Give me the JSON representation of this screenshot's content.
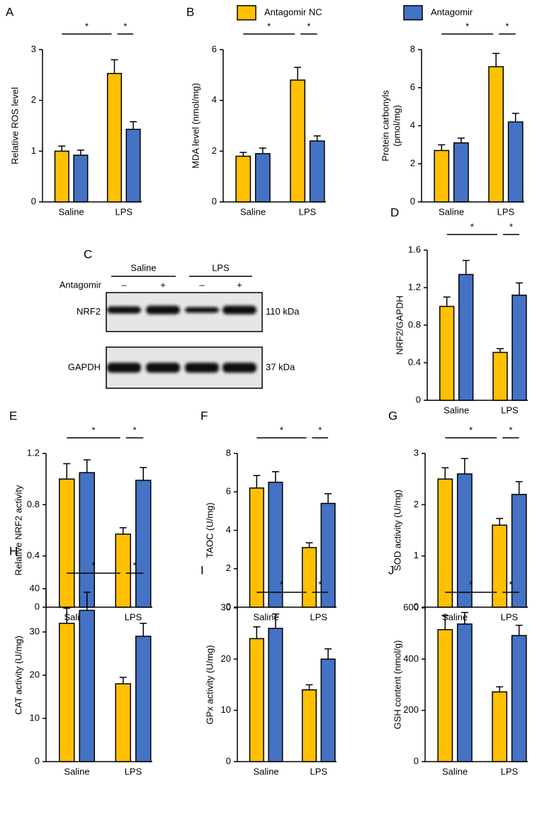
{
  "chart_data": [
    {
      "type": "bar",
      "label": "A",
      "ylabel": "Relative ROS level",
      "categories": [
        "Saline",
        "LPS"
      ],
      "ylim": [
        0,
        3
      ],
      "yticks": [
        0,
        1,
        2,
        3
      ],
      "annotations": [
        "*",
        "*"
      ],
      "series": [
        {
          "color": "#FFC000",
          "values": [
            1.0,
            2.53
          ],
          "errors": [
            0.1,
            0.27
          ]
        },
        {
          "color": "#4472C4",
          "values": [
            0.92,
            1.43
          ],
          "errors": [
            0.1,
            0.15
          ]
        }
      ]
    },
    {
      "type": "bar",
      "label": "B",
      "ylabel": "MDA level (nmol/mg)",
      "categories": [
        "Saline",
        "LPS"
      ],
      "ylim": [
        0,
        6
      ],
      "yticks": [
        0,
        2,
        4,
        6
      ],
      "annotations": [
        "*",
        "*"
      ],
      "series": [
        {
          "name": "Antagomir NC",
          "color": "#FFC000",
          "values": [
            1.8,
            4.8
          ],
          "errors": [
            0.15,
            0.5
          ]
        },
        {
          "name": "Antagomir",
          "color": "#4472C4",
          "values": [
            1.9,
            2.4
          ],
          "errors": [
            0.22,
            0.2
          ]
        }
      ]
    },
    {
      "type": "bar",
      "ylabel": [
        "Protein carbonyls",
        "(pmol/mg)"
      ],
      "categories": [
        "Saline",
        "LPS"
      ],
      "ylim": [
        0,
        8
      ],
      "yticks": [
        0,
        2,
        4,
        6,
        8
      ],
      "annotations": [
        "*",
        "*"
      ],
      "series": [
        {
          "color": "#FFC000",
          "values": [
            2.7,
            7.1
          ],
          "errors": [
            0.3,
            0.7
          ]
        },
        {
          "color": "#4472C4",
          "values": [
            3.1,
            4.2
          ],
          "errors": [
            0.25,
            0.45
          ]
        }
      ]
    },
    {
      "type": "bar",
      "label": "D",
      "ylabel": "NRF2/GAPDH",
      "categories": [
        "Saline",
        "LPS"
      ],
      "ylim": [
        0,
        1.6
      ],
      "yticks": [
        0,
        0.4,
        0.8,
        1.2,
        1.6
      ],
      "annotations": [
        "*",
        "*"
      ],
      "series": [
        {
          "color": "#FFC000",
          "values": [
            1.0,
            0.51
          ],
          "errors": [
            0.1,
            0.04
          ]
        },
        {
          "color": "#4472C4",
          "values": [
            1.34,
            1.12
          ],
          "errors": [
            0.15,
            0.13
          ]
        }
      ]
    },
    {
      "type": "bar",
      "label": "E",
      "ylabel": "Relative NRF2 activity",
      "categories": [
        "Saline",
        "LPS"
      ],
      "ylim": [
        0,
        1.2
      ],
      "yticks": [
        0,
        0.4,
        0.8,
        1.2
      ],
      "annotations": [
        "*",
        "*"
      ],
      "series": [
        {
          "color": "#FFC000",
          "values": [
            1.0,
            0.57
          ],
          "errors": [
            0.12,
            0.05
          ]
        },
        {
          "color": "#4472C4",
          "values": [
            1.05,
            0.99
          ],
          "errors": [
            0.1,
            0.1
          ]
        }
      ]
    },
    {
      "type": "bar",
      "label": "F",
      "ylabel": "TAOC (U/mg)",
      "categories": [
        "Saline",
        "LPS"
      ],
      "ylim": [
        0,
        8
      ],
      "yticks": [
        0,
        2,
        4,
        6,
        8
      ],
      "annotations": [
        "*",
        "*"
      ],
      "series": [
        {
          "color": "#FFC000",
          "values": [
            6.2,
            3.1
          ],
          "errors": [
            0.65,
            0.25
          ]
        },
        {
          "color": "#4472C4",
          "values": [
            6.5,
            5.4
          ],
          "errors": [
            0.55,
            0.5
          ]
        }
      ]
    },
    {
      "type": "bar",
      "label": "G",
      "ylabel": "SOD activity (U/mg)",
      "categories": [
        "Saline",
        "LPS"
      ],
      "ylim": [
        0,
        3
      ],
      "yticks": [
        0,
        1,
        2,
        3
      ],
      "annotations": [
        "*",
        "*"
      ],
      "series": [
        {
          "color": "#FFC000",
          "values": [
            2.5,
            1.6
          ],
          "errors": [
            0.22,
            0.13
          ]
        },
        {
          "color": "#4472C4",
          "values": [
            2.6,
            2.2
          ],
          "errors": [
            0.3,
            0.25
          ]
        }
      ]
    },
    {
      "type": "bar",
      "label": "H",
      "ylabel": "CAT activity (U/mg)",
      "categories": [
        "Saline",
        "LPS"
      ],
      "ylim": [
        0,
        40
      ],
      "yticks": [
        0,
        10,
        20,
        30,
        40
      ],
      "annotations": [
        "*",
        "*"
      ],
      "series": [
        {
          "color": "#FFC000",
          "values": [
            32,
            18
          ],
          "errors": [
            3.5,
            1.5
          ]
        },
        {
          "color": "#4472C4",
          "values": [
            35,
            29
          ],
          "errors": [
            4.2,
            3
          ]
        }
      ]
    },
    {
      "type": "bar",
      "label": "I",
      "ylabel": "GPx activity (U/mg)",
      "categories": [
        "Saline",
        "LPS"
      ],
      "ylim": [
        0,
        30
      ],
      "yticks": [
        0,
        10,
        20,
        30
      ],
      "annotations": [
        "*",
        "*"
      ],
      "series": [
        {
          "color": "#FFC000",
          "values": [
            24,
            14
          ],
          "errors": [
            2.3,
            1
          ]
        },
        {
          "color": "#4472C4",
          "values": [
            26,
            20
          ],
          "errors": [
            2.8,
            2
          ]
        }
      ]
    },
    {
      "type": "bar",
      "label": "J",
      "ylabel": "GSH content (nmol/g)",
      "categories": [
        "Saline",
        "LPS"
      ],
      "ylim": [
        0,
        600
      ],
      "yticks": [
        0,
        200,
        400,
        600
      ],
      "annotations": [
        "*",
        "*"
      ],
      "series": [
        {
          "color": "#FFC000",
          "values": [
            515,
            272
          ],
          "errors": [
            55,
            20
          ]
        },
        {
          "color": "#4472C4",
          "values": [
            537,
            492
          ],
          "errors": [
            45,
            40
          ]
        }
      ]
    }
  ],
  "blot": {
    "label": "C",
    "groups": [
      "Saline",
      "LPS"
    ],
    "row_label": "Antagomir",
    "lanes": [
      "–",
      "+",
      "–",
      "+"
    ],
    "bands": [
      {
        "name": "NRF2",
        "size": "110 kDa"
      },
      {
        "name": "GAPDH",
        "size": "37 kDa"
      }
    ]
  }
}
